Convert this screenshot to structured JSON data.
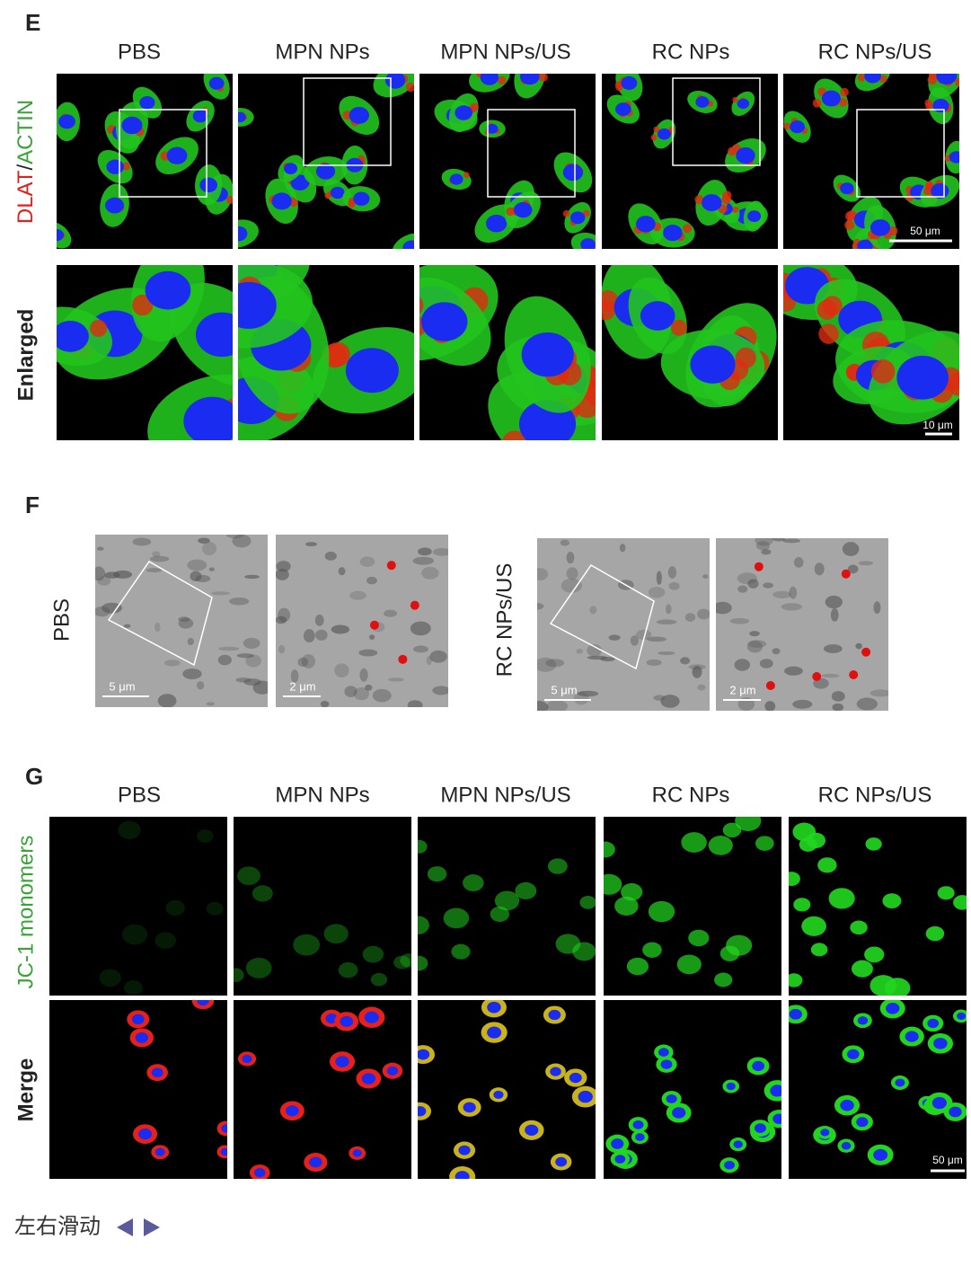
{
  "panels": {
    "E": {
      "label": "E",
      "columns": [
        "PBS",
        "MPN NPs",
        "MPN NPs/US",
        "RC NPs",
        "RC NPs/US"
      ],
      "row_labels": {
        "top": [
          "DLAT",
          "/",
          "ACTIN"
        ],
        "bottom": "Enlarged"
      },
      "scale_bars": [
        "50 μm",
        "10 μm"
      ]
    },
    "F": {
      "label": "F",
      "row_labels": [
        "PBS",
        "RC NPs/US"
      ],
      "scale_bars": [
        "5 μm",
        "2 μm",
        "5 μm",
        "2 μm"
      ]
    },
    "G": {
      "label": "G",
      "columns": [
        "PBS",
        "MPN NPs",
        "MPN NPs/US",
        "RC NPs",
        "RC NPs/US"
      ],
      "row_labels": [
        "JC-1 monomers",
        "Merge"
      ],
      "scale_bar": "50 μm"
    }
  },
  "footer": {
    "hint": "左右滑动"
  }
}
